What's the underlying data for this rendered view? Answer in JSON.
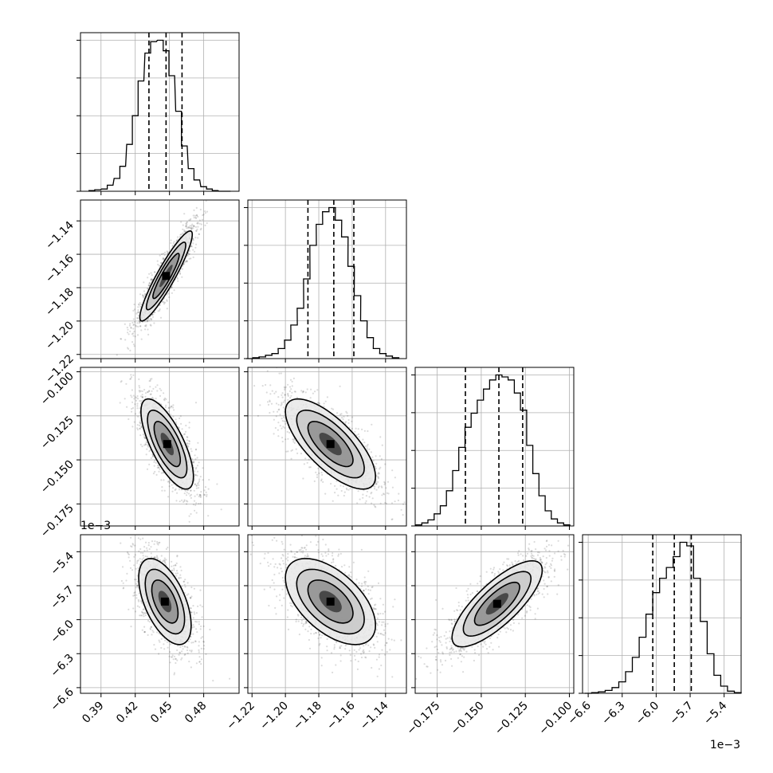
{
  "chart_data": {
    "type": "corner",
    "n_params": 4,
    "grid": true,
    "params": [
      {
        "range": [
          0.372,
          0.511
        ],
        "ticks": [
          0.39,
          0.42,
          0.45,
          0.48
        ],
        "tick_labels": [
          "0.39",
          "0.42",
          "0.45",
          "0.48"
        ],
        "offset": ""
      },
      {
        "range": [
          -1.2225,
          -1.1275
        ],
        "ticks": [
          -1.22,
          -1.2,
          -1.18,
          -1.16,
          -1.14
        ],
        "tick_labels": [
          "−1.22",
          "−1.20",
          "−1.18",
          "−1.16",
          "−1.14"
        ],
        "offset": ""
      },
      {
        "range": [
          -0.1875,
          -0.0975
        ],
        "ticks": [
          -0.175,
          -0.15,
          -0.125,
          -0.1
        ],
        "tick_labels": [
          "−0.175",
          "−0.150",
          "−0.125",
          "−0.100"
        ],
        "offset": ""
      },
      {
        "range": [
          -6.65,
          -5.25
        ],
        "ticks": [
          -6.6,
          -6.3,
          -6.0,
          -5.7,
          -5.4
        ],
        "tick_labels": [
          "−6.6",
          "−6.3",
          "−6.0",
          "−5.7",
          "−5.4"
        ],
        "offset": "1e−3"
      }
    ],
    "diagonal": [
      {
        "quantiles": [
          0.432,
          0.447,
          0.461
        ],
        "x": [
          0.382,
          0.387,
          0.393,
          0.398,
          0.404,
          0.409,
          0.415,
          0.42,
          0.425,
          0.431,
          0.436,
          0.442,
          0.447,
          0.452,
          0.458,
          0.463,
          0.469,
          0.474,
          0.48,
          0.485,
          0.49,
          0.496,
          0.501
        ],
        "counts": [
          1,
          2,
          3,
          8,
          17,
          33,
          62,
          100,
          146,
          183,
          198,
          200,
          186,
          153,
          106,
          60,
          30,
          15,
          6,
          3,
          1,
          0,
          0
        ]
      },
      {
        "quantiles": [
          -1.1865,
          -1.171,
          -1.159
        ],
        "x": [
          -1.2215,
          -1.2176,
          -1.2138,
          -1.21,
          -1.2062,
          -1.2024,
          -1.1986,
          -1.1948,
          -1.191,
          -1.1872,
          -1.1834,
          -1.1796,
          -1.1758,
          -1.172,
          -1.1682,
          -1.1644,
          -1.1606,
          -1.1568,
          -1.153,
          -1.1492,
          -1.1454,
          -1.1416,
          -1.1378,
          -1.134
        ],
        "counts": [
          0,
          1,
          2,
          4,
          6,
          12,
          22,
          40,
          60,
          95,
          135,
          160,
          175,
          180,
          165,
          145,
          110,
          75,
          45,
          25,
          12,
          6,
          3,
          1
        ]
      },
      {
        "quantiles": [
          -0.159,
          -0.14,
          -0.1265
        ],
        "x": [
          -0.1855,
          -0.182,
          -0.1785,
          -0.175,
          -0.1715,
          -0.168,
          -0.1645,
          -0.161,
          -0.1575,
          -0.154,
          -0.1505,
          -0.147,
          -0.1435,
          -0.14,
          -0.1365,
          -0.133,
          -0.1295,
          -0.126,
          -0.1225,
          -0.119,
          -0.1155,
          -0.112,
          -0.1085,
          -0.105,
          -0.1015
        ],
        "counts": [
          1,
          3,
          6,
          12,
          20,
          35,
          55,
          78,
          98,
          112,
          125,
          136,
          145,
          150,
          148,
          145,
          132,
          115,
          80,
          52,
          30,
          15,
          7,
          3,
          1
        ]
      },
      {
        "quantiles": [
          -6.03,
          -5.84,
          -5.69
        ],
        "x": [
          -6.6,
          -6.54,
          -6.48,
          -6.42,
          -6.36,
          -6.3,
          -6.24,
          -6.18,
          -6.12,
          -6.06,
          -6.0,
          -5.94,
          -5.88,
          -5.82,
          -5.76,
          -5.7,
          -5.64,
          -5.58,
          -5.52,
          -5.46,
          -5.4,
          -5.34,
          -5.28
        ],
        "counts": [
          0,
          1,
          2,
          4,
          8,
          16,
          30,
          50,
          78,
          110,
          140,
          160,
          175,
          190,
          210,
          205,
          160,
          100,
          55,
          25,
          10,
          3,
          1
        ]
      }
    ],
    "pairs": [
      {
        "row": 1,
        "col": 0,
        "center": [
          0.447,
          -1.173
        ],
        "std": [
          0.0115,
          0.0135
        ],
        "corr": 0.92
      },
      {
        "row": 2,
        "col": 0,
        "center": [
          0.448,
          -0.141
        ],
        "std": [
          0.0115,
          0.0128
        ],
        "corr": -0.72
      },
      {
        "row": 2,
        "col": 1,
        "center": [
          -1.173,
          -0.141
        ],
        "std": [
          0.0135,
          0.0128
        ],
        "corr": -0.72
      },
      {
        "row": 3,
        "col": 0,
        "center": [
          0.446,
          -5.84
        ],
        "std": [
          0.0115,
          0.19
        ],
        "corr": -0.55
      },
      {
        "row": 3,
        "col": 1,
        "center": [
          -1.173,
          -5.84
        ],
        "std": [
          0.0135,
          0.19
        ],
        "corr": -0.55
      },
      {
        "row": 3,
        "col": 2,
        "center": [
          -0.141,
          -5.86
        ],
        "std": [
          0.0128,
          0.19
        ],
        "corr": 0.78
      }
    ]
  }
}
